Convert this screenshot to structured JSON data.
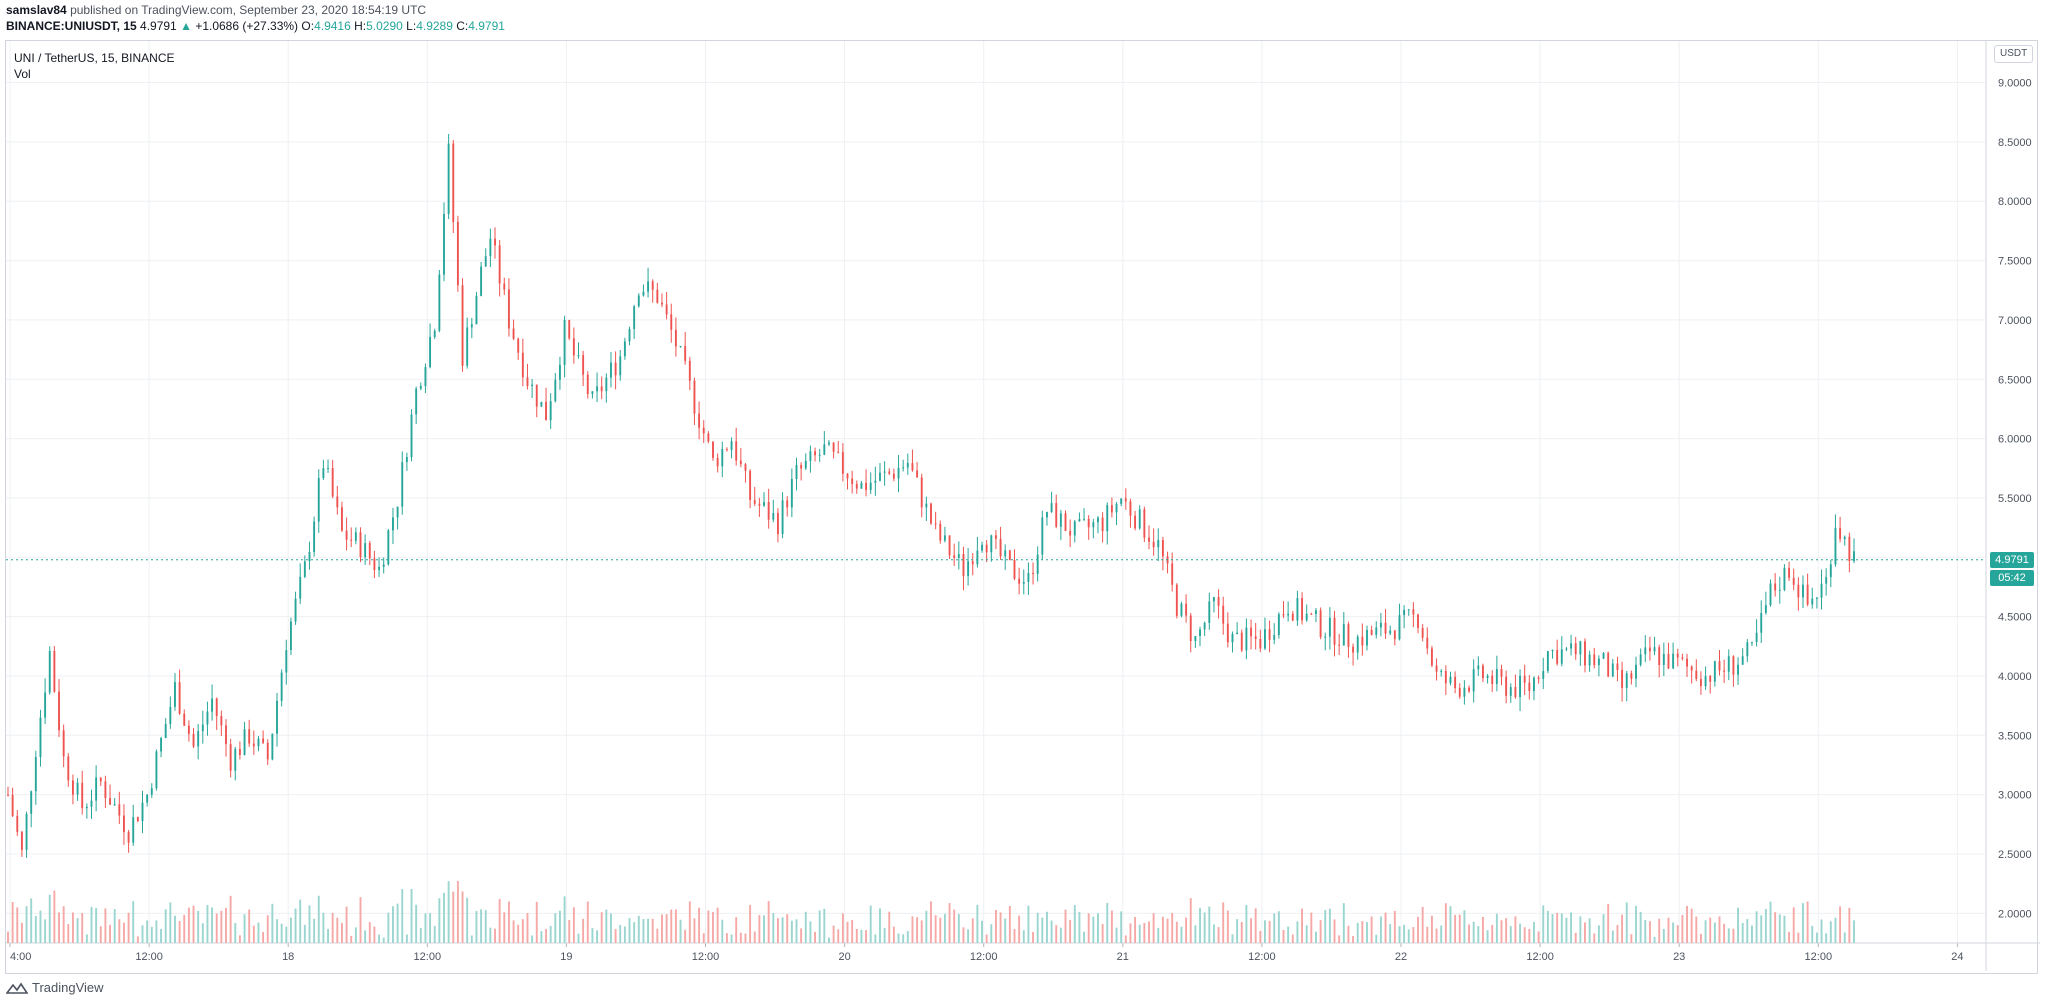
{
  "header": {
    "author": "samslav84",
    "published_text": "published on TradingView.com, September 23, 2020 18:54:19 UTC"
  },
  "quote": {
    "symbol": "BINANCE:UNIUSDT, 15",
    "last": "4.9791",
    "change": "+1.0686 (+27.33%)",
    "o_label": "O:",
    "o": "4.9416",
    "h_label": "H:",
    "h": "5.0290",
    "l_label": "L:",
    "l": "4.9289",
    "c_label": "C:",
    "c": "4.9791"
  },
  "legend": {
    "title": "UNI / TetherUS, 15, BINANCE",
    "vol": "Vol"
  },
  "price_axis": {
    "unit": "USDT",
    "current_price": "4.9791",
    "countdown": "05:42"
  },
  "footer": {
    "brand": "TradingView"
  },
  "colors": {
    "up": "#26a69a",
    "down": "#ef5350",
    "grid": "#eef0f3"
  },
  "chart_data": {
    "type": "candlestick",
    "title": "UNI / TetherUS, 15, BINANCE",
    "y_ticks": [
      "9.0000",
      "8.5000",
      "8.0000",
      "7.5000",
      "7.0000",
      "6.5000",
      "6.0000",
      "5.5000",
      "5.0000",
      "4.5000",
      "4.0000",
      "3.5000",
      "3.0000",
      "2.5000",
      "2.0000"
    ],
    "ylim": [
      1.75,
      9.35
    ],
    "x_ticks": [
      "4:00",
      "12:00",
      "18",
      "12:00",
      "19",
      "12:00",
      "20",
      "12:00",
      "21",
      "12:00",
      "22",
      "12:00",
      "23",
      "12:00",
      "24"
    ],
    "price_path": [
      [
        0,
        3.0
      ],
      [
        3,
        2.5
      ],
      [
        6,
        3.4
      ],
      [
        9,
        4.2
      ],
      [
        12,
        3.3
      ],
      [
        16,
        2.9
      ],
      [
        20,
        3.1
      ],
      [
        26,
        2.7
      ],
      [
        30,
        3.0
      ],
      [
        36,
        3.9
      ],
      [
        40,
        3.4
      ],
      [
        44,
        3.8
      ],
      [
        48,
        3.3
      ],
      [
        52,
        3.5
      ],
      [
        56,
        3.3
      ],
      [
        60,
        4.3
      ],
      [
        64,
        4.9
      ],
      [
        68,
        5.8
      ],
      [
        72,
        5.2
      ],
      [
        76,
        5.1
      ],
      [
        80,
        4.9
      ],
      [
        84,
        5.5
      ],
      [
        88,
        6.4
      ],
      [
        92,
        7.0
      ],
      [
        95,
        8.4
      ],
      [
        98,
        6.7
      ],
      [
        102,
        7.4
      ],
      [
        104,
        7.7
      ],
      [
        108,
        7.0
      ],
      [
        112,
        6.5
      ],
      [
        116,
        6.2
      ],
      [
        120,
        6.9
      ],
      [
        126,
        6.3
      ],
      [
        132,
        6.7
      ],
      [
        136,
        7.3
      ],
      [
        140,
        7.2
      ],
      [
        144,
        6.8
      ],
      [
        148,
        6.3
      ],
      [
        152,
        5.8
      ],
      [
        156,
        6.0
      ],
      [
        160,
        5.5
      ],
      [
        166,
        5.3
      ],
      [
        170,
        5.7
      ],
      [
        176,
        5.9
      ],
      [
        184,
        5.6
      ],
      [
        190,
        5.7
      ],
      [
        194,
        5.8
      ],
      [
        200,
        5.2
      ],
      [
        206,
        4.9
      ],
      [
        210,
        5.2
      ],
      [
        216,
        4.9
      ],
      [
        220,
        4.8
      ],
      [
        224,
        5.4
      ],
      [
        230,
        5.2
      ],
      [
        236,
        5.3
      ],
      [
        240,
        5.5
      ],
      [
        244,
        5.3
      ],
      [
        248,
        5.1
      ],
      [
        252,
        4.6
      ],
      [
        256,
        4.3
      ],
      [
        260,
        4.6
      ],
      [
        264,
        4.3
      ],
      [
        270,
        4.3
      ],
      [
        276,
        4.6
      ],
      [
        284,
        4.4
      ],
      [
        290,
        4.3
      ],
      [
        298,
        4.4
      ],
      [
        304,
        4.5
      ],
      [
        308,
        4.0
      ],
      [
        312,
        3.9
      ],
      [
        318,
        4.0
      ],
      [
        324,
        3.9
      ],
      [
        328,
        3.9
      ],
      [
        332,
        4.2
      ],
      [
        338,
        4.2
      ],
      [
        344,
        4.1
      ],
      [
        348,
        3.9
      ],
      [
        354,
        4.2
      ],
      [
        360,
        4.1
      ],
      [
        366,
        4.0
      ],
      [
        372,
        4.1
      ],
      [
        376,
        4.2
      ],
      [
        380,
        4.7
      ],
      [
        384,
        4.9
      ],
      [
        388,
        4.6
      ],
      [
        392,
        4.8
      ],
      [
        394,
        5.3
      ],
      [
        398,
        4.98
      ]
    ]
  }
}
